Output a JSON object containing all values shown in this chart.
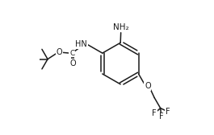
{
  "bg_color": "#ffffff",
  "line_color": "#1a1a1a",
  "lw": 1.1,
  "fs": 7.0,
  "xlim": [
    0.0,
    1.0
  ],
  "ylim": [
    0.0,
    1.0
  ]
}
